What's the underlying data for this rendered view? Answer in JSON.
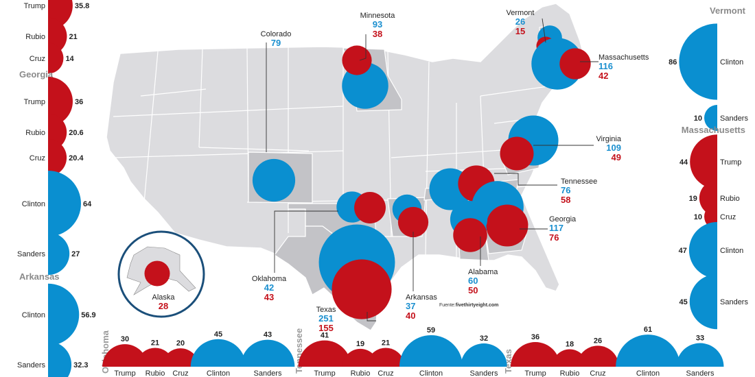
{
  "colors": {
    "rep": "#c4111b",
    "dem": "#0a8fd0",
    "land": "#dcdcdf",
    "highlight": "#c3c3c7",
    "border": "#ffffff"
  },
  "left_panel": {
    "rows": [
      {
        "label": "Trump",
        "value": "35.8",
        "party": "rep",
        "v": 35.8
      },
      {
        "label": "Rubio",
        "value": "21",
        "party": "rep",
        "v": 21
      },
      {
        "label": "Cruz",
        "value": "14",
        "party": "rep",
        "v": 14
      }
    ],
    "georgia": {
      "title": "Georgia",
      "rows": [
        {
          "label": "Trump",
          "value": "36",
          "party": "rep",
          "v": 36
        },
        {
          "label": "Rubio",
          "value": "20.6",
          "party": "rep",
          "v": 20.6
        },
        {
          "label": "Cruz",
          "value": "20.4",
          "party": "rep",
          "v": 20.4
        },
        {
          "label": "Clinton",
          "value": "64",
          "party": "dem",
          "v": 64
        },
        {
          "label": "Sanders",
          "value": "27",
          "party": "dem",
          "v": 27
        }
      ]
    },
    "arkansas": {
      "title": "Arkansas",
      "rows": [
        {
          "label": "Clinton",
          "value": "56.9",
          "party": "dem",
          "v": 56.9
        },
        {
          "label": "Sanders",
          "value": "32.3",
          "party": "dem",
          "v": 32.3
        }
      ]
    }
  },
  "right_panel": {
    "vermont": {
      "title": "Vermont",
      "rows": [
        {
          "label": "Clinton",
          "value": "86",
          "party": "dem",
          "v": 86
        },
        {
          "label": "Sanders",
          "value": "10",
          "party": "dem",
          "v": 10
        }
      ]
    },
    "massachusetts": {
      "title": "Massachusetts",
      "rows": [
        {
          "label": "Trump",
          "value": "44",
          "party": "rep",
          "v": 44
        },
        {
          "label": "Rubio",
          "value": "19",
          "party": "rep",
          "v": 19
        },
        {
          "label": "Cruz",
          "value": "10",
          "party": "rep",
          "v": 10
        },
        {
          "label": "Clinton",
          "value": "47",
          "party": "dem",
          "v": 47
        },
        {
          "label": "Sanders",
          "value": "45",
          "party": "dem",
          "v": 45
        }
      ]
    }
  },
  "bottom_panel": [
    {
      "state": "Oklahoma",
      "rows": [
        {
          "label": "Trump",
          "value": "30",
          "party": "rep",
          "v": 30
        },
        {
          "label": "Rubio",
          "value": "21",
          "party": "rep",
          "v": 21
        },
        {
          "label": "Cruz",
          "value": "20",
          "party": "rep",
          "v": 20
        },
        {
          "label": "Clinton",
          "value": "45",
          "party": "dem",
          "v": 45
        },
        {
          "label": "Sanders",
          "value": "43",
          "party": "dem",
          "v": 43
        }
      ]
    },
    {
      "state": "Tennessee",
      "rows": [
        {
          "label": "Trump",
          "value": "41",
          "party": "rep",
          "v": 41
        },
        {
          "label": "Rubio",
          "value": "19",
          "party": "rep",
          "v": 19
        },
        {
          "label": "Cruz",
          "value": "21",
          "party": "rep",
          "v": 21
        },
        {
          "label": "Clinton",
          "value": "59",
          "party": "dem",
          "v": 59
        },
        {
          "label": "Sanders",
          "value": "32",
          "party": "dem",
          "v": 32
        }
      ]
    },
    {
      "state": "Texas",
      "rows": [
        {
          "label": "Trump",
          "value": "36",
          "party": "rep",
          "v": 36
        },
        {
          "label": "Rubio",
          "value": "18",
          "party": "rep",
          "v": 18
        },
        {
          "label": "Cruz",
          "value": "26",
          "party": "rep",
          "v": 26
        },
        {
          "label": "Clinton",
          "value": "61",
          "party": "dem",
          "v": 61
        },
        {
          "label": "Sanders",
          "value": "33",
          "party": "dem",
          "v": 33
        }
      ]
    }
  ],
  "map": {
    "states": [
      {
        "name": "Colorado",
        "dem": "79",
        "rep": null
      },
      {
        "name": "Minnesota",
        "dem": "93",
        "rep": "38"
      },
      {
        "name": "Vermont",
        "dem": "26",
        "rep": "15"
      },
      {
        "name": "Massachusetts",
        "dem": "116",
        "rep": "42"
      },
      {
        "name": "Virginia",
        "dem": "109",
        "rep": "49"
      },
      {
        "name": "Tennessee",
        "dem": "76",
        "rep": "58"
      },
      {
        "name": "Georgia",
        "dem": "117",
        "rep": "76"
      },
      {
        "name": "Alabama",
        "dem": "60",
        "rep": "50"
      },
      {
        "name": "Arkansas",
        "dem": "37",
        "rep": "40"
      },
      {
        "name": "Oklahoma",
        "dem": "42",
        "rep": "43"
      },
      {
        "name": "Texas",
        "dem": "251",
        "rep": "155"
      },
      {
        "name": "Alaska",
        "dem": null,
        "rep": "28"
      }
    ],
    "source_prefix": "Fuente:",
    "source_name": "fivethirtyeight.com"
  }
}
